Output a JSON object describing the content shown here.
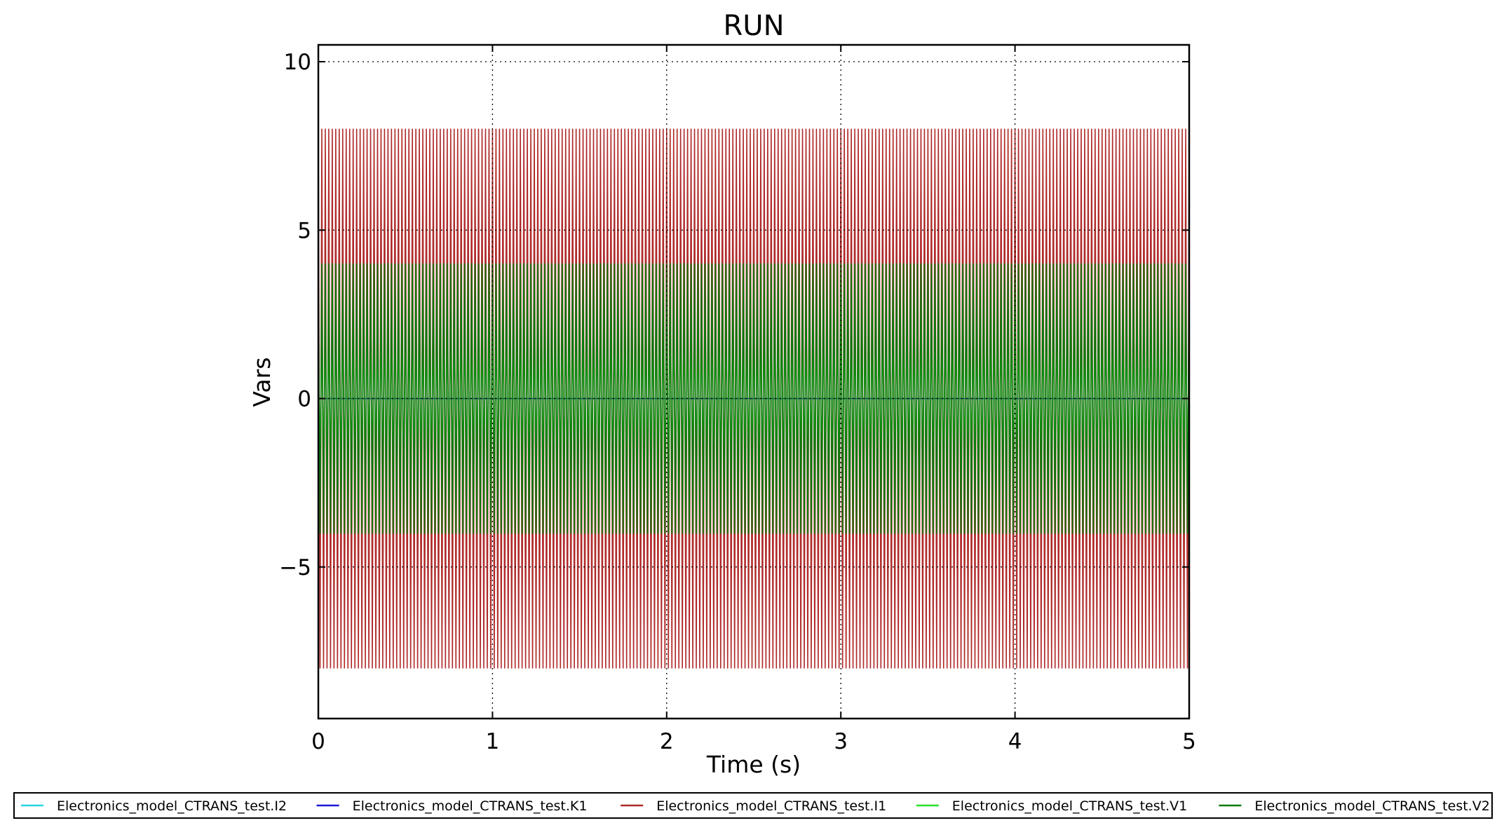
{
  "chart_data": {
    "type": "line",
    "title": "RUN",
    "xlabel": "Time (s)",
    "ylabel": "Vars",
    "xlim": [
      0,
      5
    ],
    "ylim": [
      -9.5,
      10.5
    ],
    "xticks": [
      0,
      1,
      2,
      3,
      4,
      5
    ],
    "yticks": [
      -5,
      0,
      5,
      10
    ],
    "ytick_labels": [
      "−5",
      "0",
      "5",
      "10"
    ],
    "grid": true,
    "legend_position": "bottom",
    "cycles_per_second": 50,
    "series": [
      {
        "name": "Electronics_model_CTRANS_test.I2",
        "color": "#2ad4e0",
        "amplitude": 0,
        "offset": 0
      },
      {
        "name": "Electronics_model_CTRANS_test.K1",
        "color": "#1a1ad9",
        "amplitude": 0,
        "offset": 0
      },
      {
        "name": "Electronics_model_CTRANS_test.I1",
        "color": "#b02a2a",
        "amplitude": 8,
        "offset": 0
      },
      {
        "name": "Electronics_model_CTRANS_test.V1",
        "color": "#2ae02a",
        "amplitude": 2,
        "offset": 0
      },
      {
        "name": "Electronics_model_CTRANS_test.V2",
        "color": "#0a7a0a",
        "amplitude": 4,
        "offset": 0
      }
    ]
  }
}
